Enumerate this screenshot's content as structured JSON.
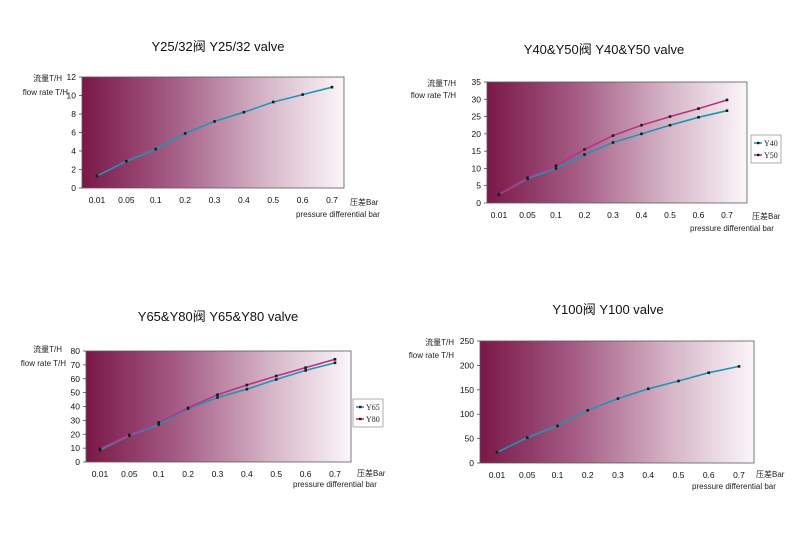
{
  "colors": {
    "primary": "#1f96b4",
    "secondary": "#b8337f",
    "marker": "#1a1a1a"
  },
  "chart_data": [
    {
      "type": "line",
      "title": "Y25/32阀 Y25/32 valve",
      "ylabel_cn": "流量T/H",
      "ylabel_en": "flow rate T/H",
      "xlabel_cn": "压差Bar",
      "xlabel_en": "pressure differential bar",
      "x_categories": [
        "0.01",
        "0.05",
        "0.1",
        "0.2",
        "0.3",
        "0.4",
        "0.5",
        "0.6",
        "0.7"
      ],
      "yticks": [
        "0",
        "2",
        "4",
        "6",
        "8",
        "10",
        "12"
      ],
      "ylim": [
        0,
        12
      ],
      "series": [
        {
          "name": "",
          "color": "#1f96b4",
          "points": [
            [
              0,
              1.3
            ],
            [
              1,
              2.9
            ],
            [
              2,
              4.2
            ],
            [
              3,
              5.9
            ],
            [
              4,
              7.2
            ],
            [
              5,
              8.2
            ],
            [
              6,
              9.3
            ],
            [
              7,
              10.1
            ],
            [
              8,
              10.9
            ]
          ]
        }
      ],
      "legend": []
    },
    {
      "type": "line",
      "title": "Y40&Y50阀 Y40&Y50 valve",
      "ylabel_cn": "流量T/H",
      "ylabel_en": "flow rate T/H",
      "xlabel_cn": "压差Bar",
      "xlabel_en": "pressure differential bar",
      "x_categories": [
        "0.01",
        "0.05",
        "0.1",
        "0.2",
        "0.3",
        "0.4",
        "0.5",
        "0.6",
        "0.7"
      ],
      "yticks": [
        "0",
        "5",
        "10",
        "15",
        "20",
        "25",
        "30",
        "35"
      ],
      "ylim": [
        0,
        35
      ],
      "series": [
        {
          "name": "Y40",
          "color": "#1f96b4",
          "points": [
            [
              0,
              2.5
            ],
            [
              1,
              7
            ],
            [
              2,
              10
            ],
            [
              3,
              14
            ],
            [
              4,
              17.5
            ],
            [
              5,
              20
            ],
            [
              6,
              22.5
            ],
            [
              7,
              24.8
            ],
            [
              8,
              26.7
            ]
          ]
        },
        {
          "name": "Y50",
          "color": "#b8337f",
          "points": [
            [
              0,
              2.5
            ],
            [
              1,
              7.3
            ],
            [
              2,
              10.8
            ],
            [
              3,
              15.5
            ],
            [
              4,
              19.5
            ],
            [
              5,
              22.5
            ],
            [
              6,
              25
            ],
            [
              7,
              27.3
            ],
            [
              8,
              29.8
            ]
          ]
        }
      ],
      "legend": [
        "Y40",
        "Y50"
      ]
    },
    {
      "type": "line",
      "title": "Y65&Y80阀 Y65&Y80 valve",
      "ylabel_cn": "流量T/H",
      "ylabel_en": "flow rate T/H",
      "xlabel_cn": "压差Bar",
      "xlabel_en": "pressure differential bar",
      "x_categories": [
        "0.01",
        "0.05",
        "0.1",
        "0.2",
        "0.3",
        "0.4",
        "0.5",
        "0.6",
        "0.7"
      ],
      "yticks": [
        "0",
        "10",
        "20",
        "30",
        "40",
        "50",
        "60",
        "70",
        "80"
      ],
      "ylim": [
        0,
        80
      ],
      "series": [
        {
          "name": "Y65",
          "color": "#1f96b4",
          "points": [
            [
              0,
              8.5
            ],
            [
              1,
              19
            ],
            [
              2,
              27
            ],
            [
              3,
              38.5
            ],
            [
              4,
              46.5
            ],
            [
              5,
              52.5
            ],
            [
              6,
              59.5
            ],
            [
              7,
              66
            ],
            [
              8,
              71.5
            ]
          ]
        },
        {
          "name": "Y80",
          "color": "#b8337f",
          "points": [
            [
              0,
              9.5
            ],
            [
              1,
              19.5
            ],
            [
              2,
              28.5
            ],
            [
              3,
              39
            ],
            [
              4,
              48.5
            ],
            [
              5,
              55.5
            ],
            [
              6,
              62
            ],
            [
              7,
              68
            ],
            [
              8,
              74
            ]
          ]
        }
      ],
      "legend": [
        "Y65",
        "Y80"
      ]
    },
    {
      "type": "line",
      "title": "Y100阀 Y100 valve",
      "ylabel_cn": "流量T/H",
      "ylabel_en": "flow rate T/H",
      "xlabel_cn": "压差Bar",
      "xlabel_en": "pressure differential bar",
      "x_categories": [
        "0.01",
        "0.05",
        "0.1",
        "0.2",
        "0.3",
        "0.4",
        "0.5",
        "0.6",
        "0.7"
      ],
      "yticks": [
        "0",
        "50",
        "100",
        "150",
        "200",
        "250"
      ],
      "ylim": [
        0,
        250
      ],
      "series": [
        {
          "name": "",
          "color": "#1f96b4",
          "points": [
            [
              0,
              22
            ],
            [
              1,
              52
            ],
            [
              2,
              76
            ],
            [
              3,
              108
            ],
            [
              4,
              132
            ],
            [
              5,
              152
            ],
            [
              6,
              168
            ],
            [
              7,
              185
            ],
            [
              8,
              198
            ]
          ]
        }
      ],
      "legend": []
    }
  ]
}
